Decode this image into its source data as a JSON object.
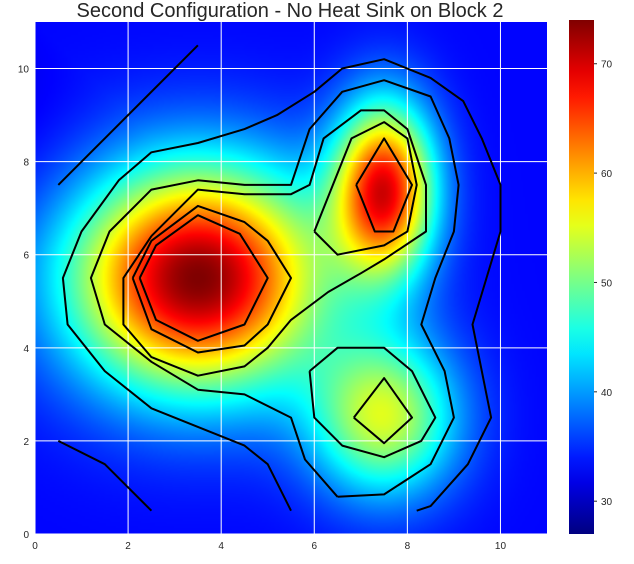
{
  "chart_data": {
    "type": "heatmap",
    "title": "Second Configuration - No Heat Sink on Block 2",
    "xlabel": "",
    "ylabel": "",
    "xlim": [
      0,
      11
    ],
    "ylim": [
      0,
      11
    ],
    "x_ticks": [
      0,
      2,
      4,
      6,
      8,
      10
    ],
    "y_ticks": [
      0,
      2,
      4,
      6,
      8,
      10
    ],
    "grid": true,
    "colormap": "jet",
    "colorbar": {
      "min": 27,
      "max": 74,
      "ticks": [
        30,
        40,
        50,
        60,
        70
      ]
    },
    "background_value": 33,
    "hotspots": [
      {
        "x": 3.5,
        "y": 5.5,
        "peak": 74,
        "spread_x": 1.9,
        "spread_y": 1.7
      },
      {
        "x": 7.5,
        "y": 7.4,
        "peak": 68,
        "spread_x": 0.75,
        "spread_y": 1.3
      },
      {
        "x": 7.5,
        "y": 2.5,
        "peak": 54,
        "spread_x": 1.1,
        "spread_y": 1.2
      }
    ],
    "contour_lines": [
      [
        [
          0.5,
          7.5
        ],
        [
          1.5,
          8.5
        ],
        [
          3.5,
          10.5
        ]
      ],
      [
        [
          0.5,
          2.0
        ],
        [
          1.5,
          1.5
        ],
        [
          2.5,
          0.5
        ]
      ],
      [
        [
          8.2,
          0.5
        ],
        [
          8.5,
          0.6
        ],
        [
          9.3,
          1.5
        ],
        [
          9.8,
          2.5
        ],
        [
          9.6,
          3.5
        ],
        [
          9.4,
          4.5
        ],
        [
          9.7,
          5.5
        ],
        [
          10.0,
          6.5
        ],
        [
          10.0,
          7.5
        ],
        [
          9.6,
          8.5
        ],
        [
          9.2,
          9.3
        ],
        [
          8.5,
          9.8
        ],
        [
          7.5,
          10.2
        ],
        [
          6.6,
          10.0
        ],
        [
          6.0,
          9.5
        ],
        [
          5.2,
          9.0
        ],
        [
          4.5,
          8.7
        ],
        [
          3.5,
          8.4
        ],
        [
          2.5,
          8.2
        ],
        [
          1.8,
          7.6
        ],
        [
          1.0,
          6.5
        ],
        [
          0.6,
          5.5
        ],
        [
          0.7,
          4.5
        ],
        [
          1.5,
          3.5
        ],
        [
          2.5,
          2.7
        ],
        [
          3.5,
          2.3
        ],
        [
          4.5,
          1.9
        ],
        [
          5.0,
          1.5
        ],
        [
          5.5,
          0.5
        ]
      ],
      [
        [
          6.5,
          0.8
        ],
        [
          7.5,
          0.85
        ],
        [
          8.5,
          1.5
        ],
        [
          9.0,
          2.5
        ],
        [
          8.8,
          3.5
        ],
        [
          8.3,
          4.5
        ],
        [
          8.6,
          5.5
        ],
        [
          9.0,
          6.5
        ],
        [
          9.1,
          7.5
        ],
        [
          8.9,
          8.5
        ],
        [
          8.5,
          9.4
        ],
        [
          7.5,
          9.75
        ],
        [
          6.6,
          9.5
        ],
        [
          5.9,
          8.7
        ],
        [
          5.5,
          7.5
        ],
        [
          4.5,
          7.5
        ],
        [
          3.5,
          7.6
        ],
        [
          2.5,
          7.4
        ],
        [
          1.6,
          6.5
        ],
        [
          1.2,
          5.5
        ],
        [
          1.5,
          4.5
        ],
        [
          2.5,
          3.7
        ],
        [
          3.5,
          3.1
        ],
        [
          4.5,
          3.0
        ],
        [
          5.5,
          2.5
        ],
        [
          5.8,
          1.6
        ],
        [
          6.5,
          0.8
        ]
      ],
      [
        [
          2.5,
          6.4
        ],
        [
          3.5,
          7.4
        ],
        [
          4.5,
          7.3
        ],
        [
          5.5,
          7.3
        ],
        [
          5.9,
          7.5
        ],
        [
          6.2,
          8.5
        ],
        [
          7.0,
          9.1
        ],
        [
          7.5,
          9.1
        ],
        [
          8.0,
          8.7
        ],
        [
          8.4,
          7.5
        ],
        [
          8.4,
          6.5
        ],
        [
          7.5,
          5.9
        ],
        [
          7.0,
          5.6
        ],
        [
          6.3,
          5.2
        ],
        [
          5.5,
          4.6
        ],
        [
          5.0,
          4.0
        ],
        [
          4.5,
          3.6
        ],
        [
          3.5,
          3.4
        ],
        [
          2.5,
          3.8
        ],
        [
          1.9,
          4.5
        ],
        [
          1.9,
          5.5
        ],
        [
          2.5,
          6.4
        ]
      ],
      [
        [
          2.1,
          5.5
        ],
        [
          2.5,
          6.3
        ],
        [
          3.5,
          7.05
        ],
        [
          4.5,
          6.7
        ],
        [
          5.0,
          6.3
        ],
        [
          5.5,
          5.5
        ],
        [
          5.0,
          4.5
        ],
        [
          4.5,
          4.05
        ],
        [
          3.5,
          3.9
        ],
        [
          2.5,
          4.4
        ],
        [
          2.1,
          5.5
        ]
      ],
      [
        [
          2.25,
          5.5
        ],
        [
          2.6,
          6.2
        ],
        [
          3.5,
          6.85
        ],
        [
          4.4,
          6.45
        ],
        [
          5.0,
          5.5
        ],
        [
          4.5,
          4.5
        ],
        [
          3.5,
          4.15
        ],
        [
          2.6,
          4.6
        ],
        [
          2.25,
          5.5
        ]
      ],
      [
        [
          6.0,
          6.5
        ],
        [
          6.4,
          7.5
        ],
        [
          6.8,
          8.5
        ],
        [
          7.5,
          8.85
        ],
        [
          8.0,
          8.5
        ],
        [
          8.2,
          7.5
        ],
        [
          8.0,
          6.5
        ],
        [
          7.5,
          6.2
        ],
        [
          6.5,
          6.0
        ],
        [
          6.0,
          6.5
        ]
      ],
      [
        [
          6.9,
          7.5
        ],
        [
          7.5,
          8.5
        ],
        [
          8.1,
          7.5
        ],
        [
          7.7,
          6.5
        ],
        [
          7.3,
          6.5
        ],
        [
          6.9,
          7.5
        ]
      ],
      [
        [
          5.9,
          3.5
        ],
        [
          6.0,
          2.5
        ],
        [
          6.6,
          1.9
        ],
        [
          7.5,
          1.65
        ],
        [
          8.3,
          2.0
        ],
        [
          8.6,
          2.5
        ],
        [
          8.1,
          3.5
        ],
        [
          7.5,
          4.0
        ],
        [
          6.5,
          4.0
        ],
        [
          5.9,
          3.5
        ]
      ],
      [
        [
          6.85,
          2.5
        ],
        [
          7.5,
          3.35
        ],
        [
          8.1,
          2.5
        ],
        [
          7.5,
          1.95
        ],
        [
          6.85,
          2.5
        ]
      ]
    ]
  }
}
